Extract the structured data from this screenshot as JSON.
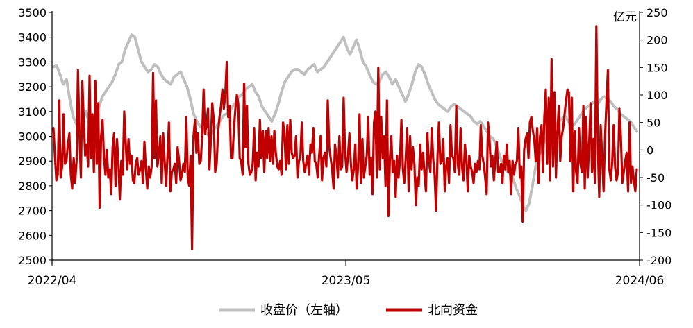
{
  "chart_data": {
    "type": "line",
    "x_tick_labels": [
      "2022/04",
      "2023/05",
      "2024/06"
    ],
    "y_left": {
      "min": 2500,
      "max": 3500,
      "step": 100,
      "ticks": [
        "2500",
        "2600",
        "2700",
        "2800",
        "2900",
        "3000",
        "3100",
        "3200",
        "3300",
        "3400",
        "3500"
      ]
    },
    "y_right": {
      "min": -200,
      "max": 250,
      "step": 50,
      "unit": "亿元",
      "ticks": [
        "-200",
        "-150",
        "-100",
        "-50",
        "0",
        "50",
        "100",
        "150",
        "200",
        "250"
      ]
    },
    "legend": [
      "收盘价（左轴）",
      "北向资金"
    ],
    "colors": {
      "close": "#bfbfbf",
      "flow": "#c00000",
      "axis": "#000000"
    },
    "series": [
      {
        "name": "收盘价（左轴）",
        "axis": "left",
        "values": [
          3280,
          3285,
          3250,
          3210,
          3230,
          3150,
          3080,
          3050,
          3040,
          3060,
          3100,
          3050,
          3000,
          3080,
          3120,
          3160,
          3180,
          3200,
          3220,
          3250,
          3290,
          3300,
          3350,
          3380,
          3410,
          3400,
          3350,
          3300,
          3280,
          3260,
          3270,
          3290,
          3280,
          3250,
          3230,
          3220,
          3210,
          3240,
          3250,
          3260,
          3230,
          3200,
          3150,
          3090,
          3060,
          3040,
          3030,
          3010,
          3000,
          3020,
          3040,
          3060,
          3080,
          3090,
          3100,
          3120,
          3140,
          3160,
          3170,
          3190,
          3200,
          3210,
          3180,
          3160,
          3120,
          3100,
          3080,
          3060,
          3090,
          3130,
          3180,
          3220,
          3240,
          3260,
          3270,
          3270,
          3260,
          3250,
          3270,
          3280,
          3290,
          3260,
          3270,
          3280,
          3300,
          3320,
          3340,
          3360,
          3380,
          3400,
          3360,
          3330,
          3360,
          3390,
          3350,
          3300,
          3280,
          3250,
          3220,
          3210,
          3220,
          3250,
          3260,
          3240,
          3210,
          3230,
          3200,
          3170,
          3140,
          3170,
          3210,
          3260,
          3290,
          3280,
          3250,
          3210,
          3180,
          3150,
          3130,
          3120,
          3110,
          3100,
          3120,
          3130,
          3120,
          3110,
          3100,
          3090,
          3080,
          3060,
          3050,
          3060,
          3040,
          3020,
          3000,
          2990,
          2960,
          2920,
          2880,
          2860,
          2850,
          2830,
          2790,
          2760,
          2720,
          2700,
          2730,
          2800,
          2880,
          2920,
          2960,
          2990,
          3010,
          3020,
          3040,
          3060,
          3070,
          3080,
          3060,
          3040,
          3050,
          3070,
          3090,
          3110,
          3120,
          3130,
          3140,
          3130,
          3150,
          3160,
          3150,
          3140,
          3120,
          3110,
          3090,
          3080,
          3070,
          3060,
          3040,
          3020
        ]
      },
      {
        "name": "北向资金",
        "axis": "right",
        "values": [
          40,
          -10,
          -55,
          -45,
          90,
          -50,
          -30,
          65,
          -25,
          -20,
          10,
          30,
          -45,
          -70,
          -15,
          -60,
          -20,
          145,
          30,
          -50,
          125,
          50,
          -10,
          10,
          -30,
          135,
          -15,
          65,
          -40,
          125,
          -25,
          85,
          -105,
          25,
          55,
          -15,
          -45,
          0,
          -50,
          -35,
          -80,
          5,
          30,
          -65,
          20,
          -25,
          -90,
          -20,
          -45,
          70,
          15,
          -35,
          20,
          -25,
          -10,
          -55,
          -60,
          -25,
          -15,
          -45,
          -35,
          -20,
          -60,
          15,
          -35,
          -70,
          -30,
          -50,
          -30,
          140,
          -15,
          90,
          -30,
          -10,
          25,
          -60,
          30,
          -20,
          -65,
          -10,
          50,
          -75,
          -40,
          -35,
          -25,
          -60,
          5,
          -20,
          -55,
          -45,
          -25,
          -40,
          60,
          -50,
          -65,
          -10,
          -180,
          25,
          55,
          -5,
          30,
          -25,
          -20,
          25,
          110,
          30,
          45,
          75,
          -35,
          15,
          85,
          55,
          -40,
          -25,
          30,
          60,
          80,
          110,
          75,
          100,
          160,
          60,
          80,
          -15,
          -15,
          40,
          75,
          100,
          85,
          -15,
          -20,
          -45,
          120,
          5,
          80,
          -25,
          -45,
          -40,
          -25,
          40,
          -55,
          -5,
          -30,
          55,
          -15,
          35,
          -40,
          35,
          -15,
          40,
          -20,
          25,
          -25,
          35,
          -5,
          -30,
          -35,
          -20,
          -45,
          50,
          30,
          -35,
          45,
          -25,
          55,
          -5,
          -15,
          -10,
          25,
          -50,
          -20,
          -15,
          50,
          -20,
          -40,
          -25,
          -10,
          -45,
          10,
          -5,
          40,
          -20,
          -25,
          -50,
          -10,
          25,
          -55,
          -15,
          -5,
          -30,
          90,
          5,
          -15,
          -35,
          -70,
          10,
          -10,
          -50,
          25,
          -35,
          -30,
          95,
          -5,
          -40,
          -10,
          30,
          -25,
          -55,
          -35,
          10,
          -70,
          -30,
          65,
          -60,
          20,
          -50,
          -30,
          -10,
          60,
          -45,
          -15,
          -80,
          50,
          70,
          -50,
          150,
          -35,
          60,
          -15,
          25,
          -65,
          90,
          -120,
          -15,
          25,
          -40,
          -20,
          -85,
          -10,
          -50,
          -20,
          55,
          -35,
          -60,
          -15,
          40,
          -75,
          25,
          -35,
          5,
          -25,
          -100,
          -50,
          -65,
          10,
          -35,
          -5,
          -45,
          -75,
          30,
          -20,
          -40,
          40,
          -15,
          -45,
          -110,
          -10,
          50,
          -25,
          -20,
          20,
          -75,
          -30,
          -15,
          -60,
          45,
          -10,
          -15,
          -40,
          80,
          -25,
          -45,
          40,
          -30,
          -55,
          10,
          -20,
          -75,
          -10,
          -30,
          -40,
          -60,
          -25,
          -40,
          -20,
          -35,
          45,
          -10,
          -25,
          -50,
          -80,
          50,
          20,
          -30,
          -10,
          -55,
          -20,
          15,
          -40,
          -40,
          -25,
          -60,
          -10,
          -35,
          10,
          -40,
          -20,
          -80,
          -20,
          -45,
          -25,
          -20,
          40,
          -50,
          -30,
          -130,
          0,
          20,
          30,
          -15,
          50,
          60,
          35,
          20,
          -20,
          40,
          -60,
          25,
          45,
          -40,
          60,
          110,
          -25,
          95,
          -55,
          165,
          -30,
          105,
          -50,
          30,
          80,
          -20,
          25,
          40,
          65,
          90,
          110,
          105,
          -20,
          95,
          -75,
          35,
          -40,
          -60,
          40,
          -25,
          -40,
          80,
          -70,
          60,
          -50,
          10,
          85,
          -40,
          20,
          -60,
          225,
          10,
          -85,
          45,
          -10,
          -75,
          25,
          85,
          145,
          -35,
          -55,
          -20,
          45,
          -30,
          -55,
          -40,
          75,
          25,
          -60,
          -40,
          -20,
          -5,
          -75,
          50,
          -60,
          -30,
          -55,
          -75,
          -35
        ]
      }
    ]
  }
}
